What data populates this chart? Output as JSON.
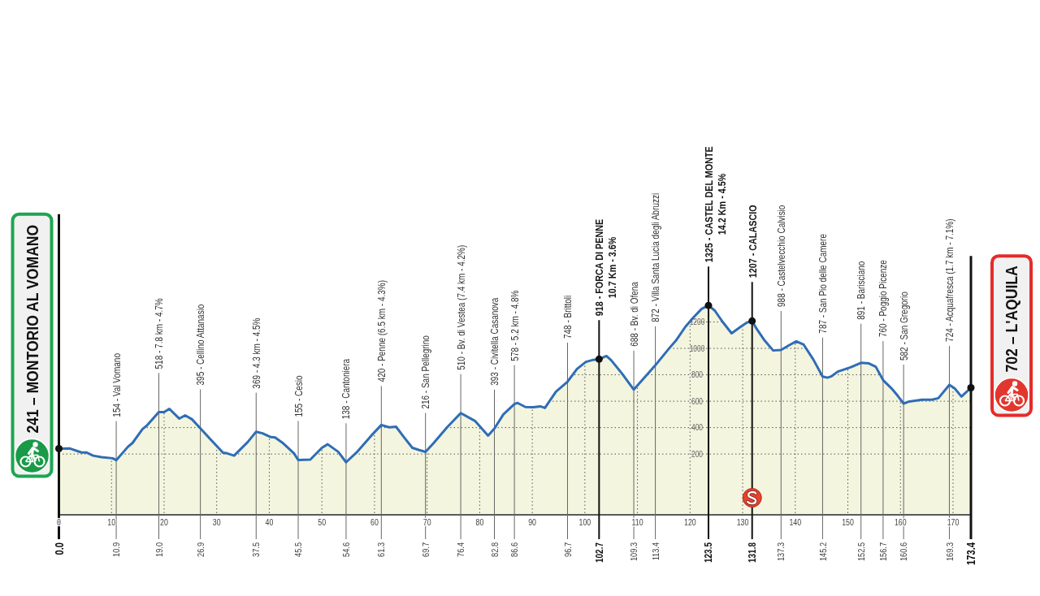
{
  "chart_data": {
    "type": "area",
    "x": [
      0,
      2.1,
      4.3,
      5.2,
      6.5,
      8.1,
      10.2,
      10.9,
      13.1,
      14.0,
      15.9,
      16.8,
      19.0,
      20.0,
      21.0,
      22.9,
      24.0,
      25.3,
      26.9,
      28.7,
      31.2,
      32.0,
      33.3,
      35.9,
      37.5,
      38.7,
      40.3,
      41.1,
      42.5,
      44.7,
      45.5,
      47.8,
      50.0,
      51.1,
      53.1,
      54.6,
      56.6,
      59.4,
      61.3,
      62.8,
      64.1,
      65.6,
      67.2,
      68.5,
      69.7,
      71.3,
      73.8,
      76.4,
      79.1,
      81.6,
      82.8,
      84.5,
      86.6,
      87.2,
      88.7,
      90.2,
      91.5,
      92.4,
      94.5,
      96.7,
      98.5,
      100.2,
      101.6,
      102.7,
      104.1,
      105.0,
      107.1,
      109.3,
      111.7,
      113.4,
      116.1,
      117.3,
      119.1,
      120.7,
      122.2,
      123.5,
      124.7,
      126.2,
      127.9,
      129.6,
      130.8,
      131.8,
      132.6,
      134.2,
      135.8,
      137.3,
      138.8,
      140.2,
      141.6,
      143.4,
      145.2,
      146.1,
      146.8,
      148.1,
      150.5,
      152.5,
      154.0,
      155.3,
      156.7,
      158.3,
      159.5,
      160.6,
      161.7,
      164.1,
      166.0,
      167.2,
      169.3,
      170.3,
      171.6,
      173.4
    ],
    "series": [
      {
        "color": "#f4f5df",
        "values": [
          241,
          242,
          212,
          212,
          188,
          176,
          168,
          154,
          254,
          284,
          389,
          419,
          518,
          517,
          542,
          468,
          493,
          463,
          395,
          316,
          210,
          205,
          188,
          291,
          369,
          357,
          328,
          326,
          286,
          205,
          155,
          158,
          247,
          274,
          217,
          138,
          212,
          340,
          420,
          402,
          407,
          328,
          247,
          230,
          216,
          286,
          402,
          510,
          451,
          340,
          393,
          500,
          578,
          587,
          556,
          554,
          561,
          549,
          672,
          748,
          844,
          898,
          913,
          918,
          942,
          910,
          807,
          688,
          795,
          872,
          1004,
          1058,
          1163,
          1237,
          1299,
          1325,
          1286,
          1200,
          1114,
          1163,
          1195,
          1207,
          1151,
          1058,
          984,
          988,
          1023,
          1053,
          1028,
          918,
          787,
          778,
          787,
          824,
          856,
          891,
          886,
          861,
          760,
          697,
          640,
          582,
          598,
          611,
          611,
          623,
          724,
          697,
          635,
          702
        ]
      },
      {
        "type": "scatter",
        "color": "#111111",
        "marker": "circle",
        "x": [
          0,
          102.7,
          123.5,
          131.8,
          173.4
        ],
        "values": [
          241,
          918,
          1325,
          1207,
          702
        ]
      }
    ],
    "xlim": [
      0,
      173.4
    ],
    "ylim": [
      -260,
      2500
    ],
    "xticks": [
      0,
      10,
      20,
      30,
      40,
      50,
      60,
      70,
      80,
      90,
      100,
      110,
      120,
      130,
      140,
      150,
      160,
      170
    ],
    "yticks": [
      200,
      400,
      600,
      800,
      1000,
      1200
    ],
    "x2lim": [
      0,
      173.4
    ],
    "x2ticks": [
      {
        "value": 0,
        "label": "0.0"
      },
      10.9,
      {
        "value": 19,
        "label": "19.0"
      },
      26.9,
      37.5,
      45.5,
      54.6,
      61.3,
      69.7,
      76.4,
      82.8,
      86.6,
      96.7,
      102.7,
      109.3,
      113.4,
      123.5,
      131.8,
      137.3,
      145.2,
      152.5,
      156.7,
      160.6,
      169.3,
      173.4
    ],
    "grid": true,
    "bands": [
      {
        "axis": "y",
        "from": -260,
        "to": 0,
        "color": "#f4f5df"
      }
    ],
    "ref_lines": [
      {
        "axis": "x",
        "value": 0,
        "label": "241 – MONTORIO AL VOMANO",
        "color": "#111111"
      },
      {
        "axis": "x",
        "value": 10.9,
        "label": "154 - Val Vomano",
        "color": "#666666"
      },
      {
        "axis": "x",
        "value": 19.0,
        "label": "518 - 7.8 km - 4.7%",
        "color": "#666666"
      },
      {
        "axis": "x",
        "value": 26.9,
        "label": "395 - Cellino Attanasio",
        "color": "#666666"
      },
      {
        "axis": "x",
        "value": 37.5,
        "label": "369 - 4.3 km - 4.5%",
        "color": "#666666"
      },
      {
        "axis": "x",
        "value": 45.5,
        "label": "155 - Cesio",
        "color": "#666666"
      },
      {
        "axis": "x",
        "value": 54.6,
        "label": "138 - Cantoniera",
        "color": "#666666"
      },
      {
        "axis": "x",
        "value": 61.3,
        "label": "420 - Penne (6.5 km - 4.3%)",
        "color": "#666666"
      },
      {
        "axis": "x",
        "value": 69.7,
        "label": "216 - San Pellegrino",
        "color": "#666666"
      },
      {
        "axis": "x",
        "value": 76.4,
        "label": "510 - Bv. di Vestea (7.4 km - 4.2%)",
        "color": "#666666"
      },
      {
        "axis": "x",
        "value": 82.8,
        "label": "393 - Civitella Casanova",
        "color": "#666666"
      },
      {
        "axis": "x",
        "value": 86.6,
        "label": "578 - 5.2 km - 4.8%",
        "color": "#666666"
      },
      {
        "axis": "x",
        "value": 96.7,
        "label": "748 - Brittoli",
        "color": "#666666"
      },
      {
        "axis": "x",
        "value": 102.7,
        "label": "918 - FORCA DI PENNE\n10.7 Km - 3.6%",
        "color": "#111111"
      },
      {
        "axis": "x",
        "value": 109.3,
        "label": "688 - Bv. di Ofena",
        "color": "#666666"
      },
      {
        "axis": "x",
        "value": 113.4,
        "label": "872 - Villa Santa Lucia degli Abruzzi",
        "color": "#666666"
      },
      {
        "axis": "x",
        "value": 123.5,
        "label": "1325 - CASTEL DEL MONTE\n14.2 Km - 4.5%",
        "color": "#111111"
      },
      {
        "axis": "x",
        "value": 131.8,
        "label": "1207 - CALASCIO",
        "color": "#111111"
      },
      {
        "axis": "x",
        "value": 137.3,
        "label": "988 - Castelvecchio Calvisio",
        "color": "#666666"
      },
      {
        "axis": "x",
        "value": 145.2,
        "label": "787 - San Pio delle Camere",
        "color": "#666666"
      },
      {
        "axis": "x",
        "value": 152.5,
        "label": "891 - Barisciano",
        "color": "#666666"
      },
      {
        "axis": "x",
        "value": 156.7,
        "label": "760 - Poggio Picenze",
        "color": "#666666"
      },
      {
        "axis": "x",
        "value": 160.6,
        "label": "582 - San Gregorio",
        "color": "#666666"
      },
      {
        "axis": "x",
        "value": 169.3,
        "label": "724 - Acquafresca (1.7 km - 7.1%)",
        "color": "#666666"
      },
      {
        "axis": "x",
        "value": 173.4,
        "label": "702 – L'AQUILA",
        "color": "#111111"
      }
    ]
  }
}
